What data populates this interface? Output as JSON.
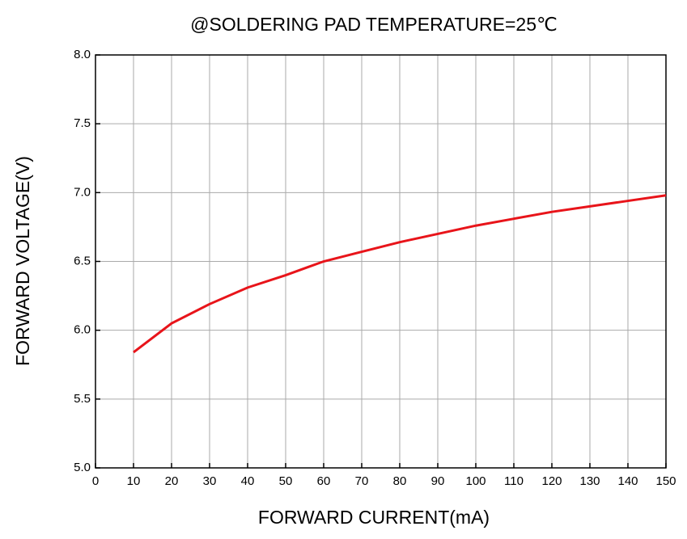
{
  "chart_data": {
    "type": "line",
    "title": "@SOLDERING PAD TEMPERATURE=25℃",
    "x_label": "FORWARD CURRENT(mA)",
    "y_label": "FORWARD VOLTAGE(V)",
    "x": [
      10,
      20,
      30,
      40,
      50,
      60,
      70,
      80,
      90,
      100,
      110,
      120,
      130,
      140,
      150
    ],
    "series": [
      {
        "name": "Forward voltage",
        "color": "#e8141a",
        "values": [
          5.84,
          6.05,
          6.19,
          6.31,
          6.4,
          6.5,
          6.57,
          6.64,
          6.7,
          6.76,
          6.81,
          6.86,
          6.9,
          6.94,
          6.98
        ]
      }
    ],
    "xlim": [
      0,
      150
    ],
    "xticks": [
      0,
      10,
      20,
      30,
      40,
      50,
      60,
      70,
      80,
      90,
      100,
      110,
      120,
      130,
      140,
      150
    ],
    "ylim": [
      5,
      8
    ],
    "yticks": [
      {
        "value": 5,
        "label": "5.0"
      },
      {
        "value": 5.5,
        "label": "5.5"
      },
      {
        "value": 6,
        "label": "6.0"
      },
      {
        "value": 6.5,
        "label": "6.5"
      },
      {
        "value": 7,
        "label": "7.0"
      },
      {
        "value": 7.5,
        "label": "7.5"
      },
      {
        "value": 8,
        "label": "8.0"
      }
    ],
    "grid": true
  }
}
